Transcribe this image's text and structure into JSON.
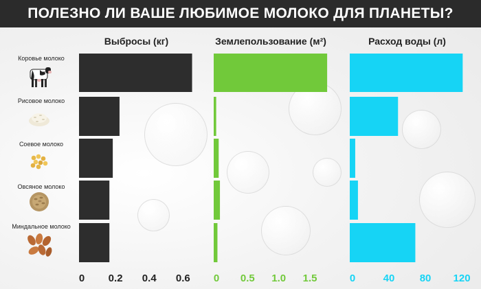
{
  "title": "ПОЛЕЗНО ЛИ ВАШЕ ЛЮБИМОЕ МОЛОКО ДЛЯ ПЛАНЕТЫ?",
  "colors": {
    "emissions": "#2d2d2d",
    "land": "#71c93a",
    "water": "#16d4f5"
  },
  "icons": [
    "cow-icon",
    "rice-icon",
    "soy-icon",
    "oat-icon",
    "almond-icon"
  ],
  "chart_data": [
    {
      "type": "bar",
      "orientation": "horizontal",
      "title": "Выбросы (кг)",
      "categories": [
        "Коровье молоко",
        "Рисовое молоко",
        "Соевое молоко",
        "Овсяное молоко",
        "Миндальное молоко"
      ],
      "values": [
        0.67,
        0.24,
        0.2,
        0.18,
        0.18
      ],
      "xlim": [
        0,
        0.68
      ],
      "xticks": [
        0,
        0.2,
        0.4,
        0.6
      ],
      "xticklabels": [
        "0",
        "0.2",
        "0.4",
        "0.6"
      ],
      "color": "#2d2d2d"
    },
    {
      "type": "bar",
      "orientation": "horizontal",
      "title": "Землепользование (м²)",
      "categories": [
        "Коровье молоко",
        "Рисовое молоко",
        "Соевое молоко",
        "Овсяное молоко",
        "Миндальное молоко"
      ],
      "values": [
        1.82,
        0.04,
        0.08,
        0.1,
        0.06
      ],
      "xlim": [
        0,
        1.83
      ],
      "xticks": [
        0,
        0.5,
        1.0,
        1.5
      ],
      "xticklabels": [
        "0",
        "0.5",
        "1.0",
        "1.5"
      ],
      "color": "#71c93a"
    },
    {
      "type": "bar",
      "orientation": "horizontal",
      "title": "Расход воды (л)",
      "categories": [
        "Коровье молоко",
        "Рисовое молоко",
        "Соевое молоко",
        "Овсяное молоко",
        "Миндальное молоко"
      ],
      "values": [
        124,
        53,
        6,
        9,
        72
      ],
      "xlim": [
        0,
        126
      ],
      "xticks": [
        0,
        40,
        80,
        120
      ],
      "xticklabels": [
        "0",
        "40",
        "80",
        "120"
      ],
      "color": "#16d4f5"
    }
  ]
}
